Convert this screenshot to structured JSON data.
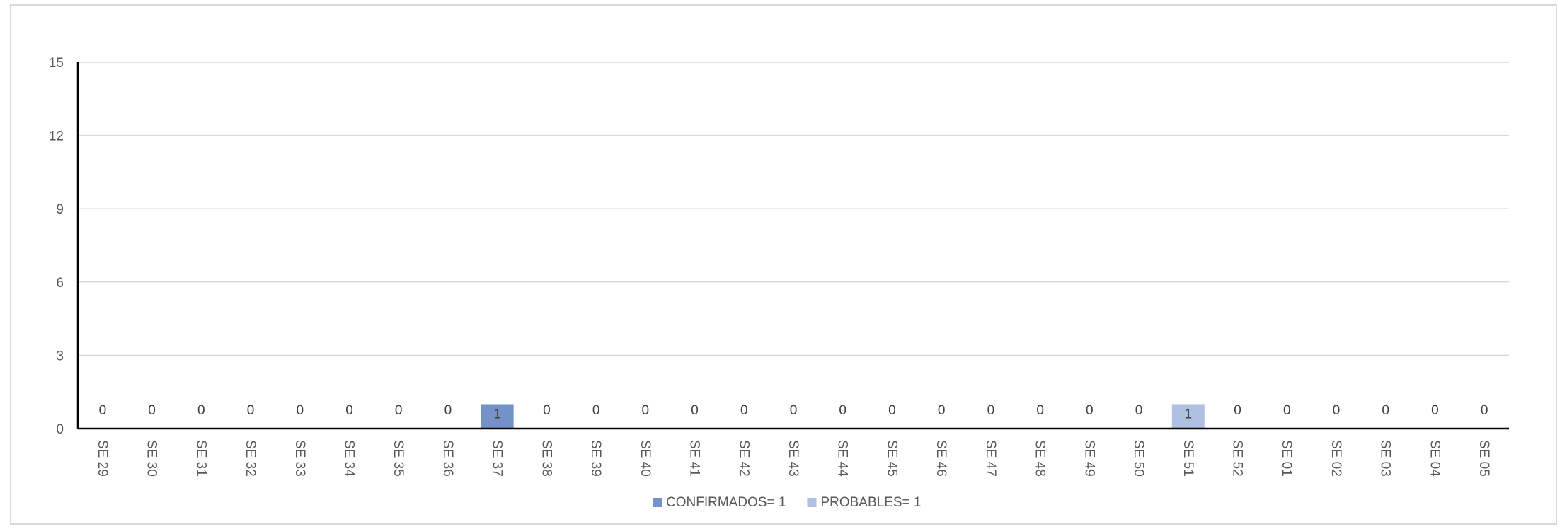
{
  "chart_data": {
    "type": "bar",
    "title": "",
    "xlabel": "",
    "ylabel": "",
    "ylim": [
      0,
      15
    ],
    "yticks": [
      0,
      3,
      6,
      9,
      12,
      15
    ],
    "grid": true,
    "legend_position": "bottom",
    "categories": [
      "SE 29",
      "SE 30",
      "SE 31",
      "SE 32",
      "SE 33",
      "SE 34",
      "SE 35",
      "SE 36",
      "SE 37",
      "SE 38",
      "SE 39",
      "SE 40",
      "SE 41",
      "SE 42",
      "SE 43",
      "SE 44",
      "SE 45",
      "SE 46",
      "SE 47",
      "SE 48",
      "SE 49",
      "SE 50",
      "SE 51",
      "SE 52",
      "SE 01",
      "SE 02",
      "SE 03",
      "SE 04",
      "SE 05"
    ],
    "series": [
      {
        "name": "CONFIRMADOS= 1",
        "color": "#7592c8",
        "values": [
          0,
          0,
          0,
          0,
          0,
          0,
          0,
          0,
          1,
          0,
          0,
          0,
          0,
          0,
          0,
          0,
          0,
          0,
          0,
          0,
          0,
          0,
          0,
          0,
          0,
          0,
          0,
          0,
          0
        ]
      },
      {
        "name": "PROBABLES= 1",
        "color": "#afc1e3",
        "values": [
          0,
          0,
          0,
          0,
          0,
          0,
          0,
          0,
          0,
          0,
          0,
          0,
          0,
          0,
          0,
          0,
          0,
          0,
          0,
          0,
          0,
          0,
          1,
          0,
          0,
          0,
          0,
          0,
          0
        ]
      }
    ],
    "data_labels": [
      "0",
      "0",
      "0",
      "0",
      "0",
      "0",
      "0",
      "0",
      "1",
      "0",
      "0",
      "0",
      "0",
      "0",
      "0",
      "0",
      "0",
      "0",
      "0",
      "0",
      "0",
      "0",
      "1",
      "0",
      "0",
      "0",
      "0",
      "0",
      "0"
    ]
  }
}
